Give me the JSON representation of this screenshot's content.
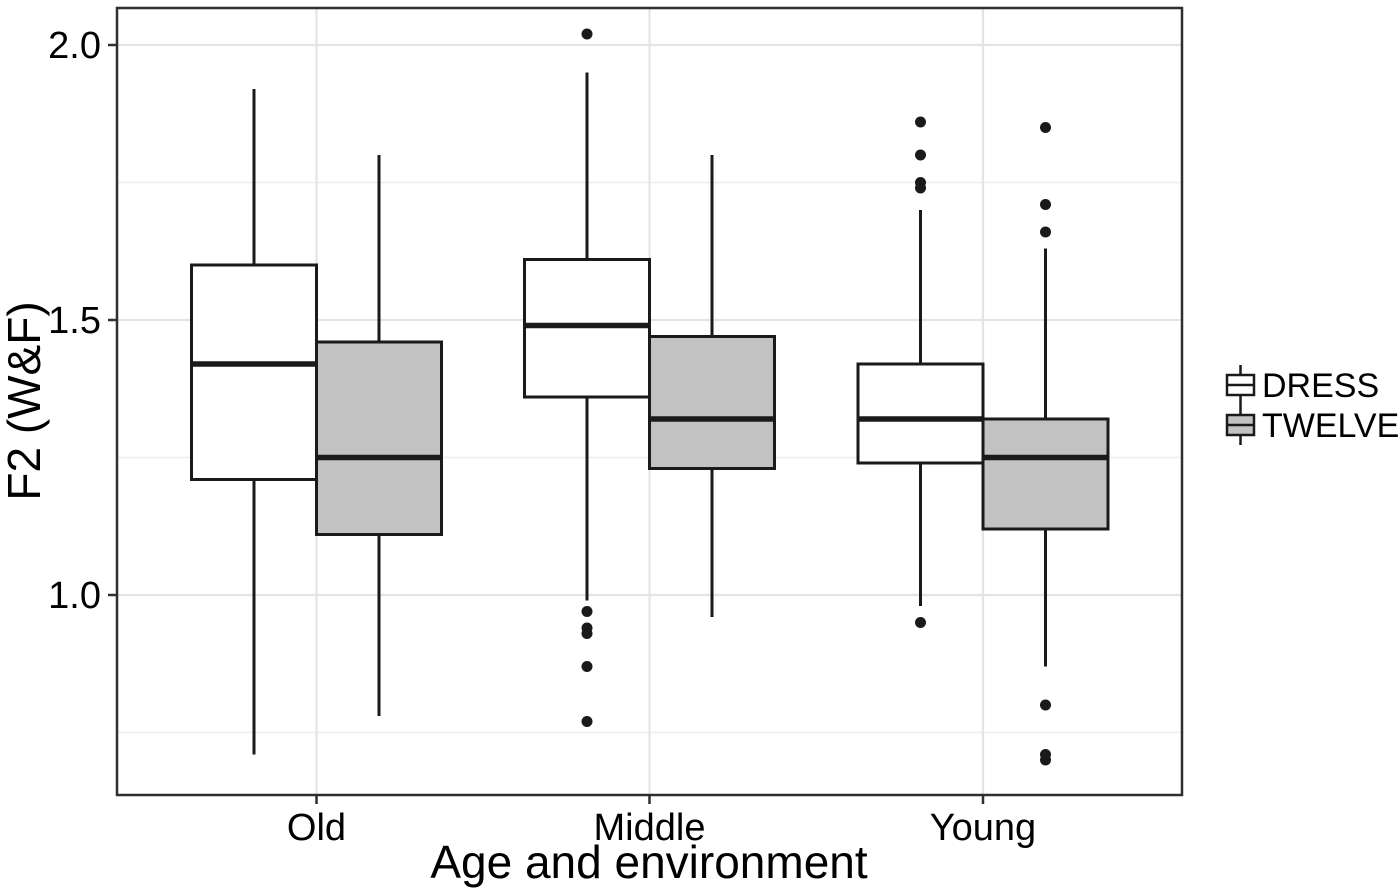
{
  "figure": {
    "background": "#ffffff",
    "panel_border_color": "#2f2f2f",
    "gridline_major_color": "#e4e4e4",
    "gridline_minor_color": "#efefef",
    "box_line_color": "#1a1a1a",
    "text_color": "#000000"
  },
  "chart_data": {
    "type": "boxplot",
    "title": "",
    "xlabel": "Age and environment",
    "ylabel": "F2 (W&F)",
    "categories": [
      "Old",
      "Middle",
      "Young"
    ],
    "y_ticks": [
      2.0,
      1.5,
      1.0
    ],
    "y_tick_labels": [
      "2.0",
      "1.5",
      "1.0"
    ],
    "y_major_gridlines": [
      2.0,
      1.5,
      1.0
    ],
    "y_minor_gridlines": [
      1.75,
      1.25,
      0.75
    ],
    "ylim": [
      0.635,
      2.065
    ],
    "grid": true,
    "legend_position": "right",
    "series": [
      {
        "name": "DRESS",
        "fill": "#ffffff",
        "boxes": [
          {
            "category": "Old",
            "whisker_low": 0.71,
            "q1": 1.21,
            "median": 1.42,
            "q3": 1.6,
            "whisker_high": 1.92,
            "outliers": []
          },
          {
            "category": "Middle",
            "whisker_low": 0.99,
            "q1": 1.36,
            "median": 1.49,
            "q3": 1.61,
            "whisker_high": 1.95,
            "outliers": [
              2.02,
              0.97,
              0.94,
              0.93,
              0.87,
              0.77
            ]
          },
          {
            "category": "Young",
            "whisker_low": 0.98,
            "q1": 1.24,
            "median": 1.32,
            "q3": 1.42,
            "whisker_high": 1.7,
            "outliers": [
              1.86,
              1.8,
              1.75,
              1.74,
              0.95
            ]
          }
        ]
      },
      {
        "name": "TWELVE",
        "fill": "#c2c2c2",
        "boxes": [
          {
            "category": "Old",
            "whisker_low": 0.78,
            "q1": 1.11,
            "median": 1.25,
            "q3": 1.46,
            "whisker_high": 1.8,
            "outliers": []
          },
          {
            "category": "Middle",
            "whisker_low": 0.96,
            "q1": 1.23,
            "median": 1.32,
            "q3": 1.47,
            "whisker_high": 1.8,
            "outliers": []
          },
          {
            "category": "Young",
            "whisker_low": 0.87,
            "q1": 1.12,
            "median": 1.25,
            "q3": 1.32,
            "whisker_high": 1.63,
            "outliers": [
              1.85,
              1.71,
              1.66,
              0.8,
              0.71,
              0.7
            ]
          }
        ]
      }
    ],
    "legend_entries": [
      {
        "label": "DRESS",
        "fill": "#ffffff"
      },
      {
        "label": "TWELVE",
        "fill": "#c2c2c2"
      }
    ]
  }
}
